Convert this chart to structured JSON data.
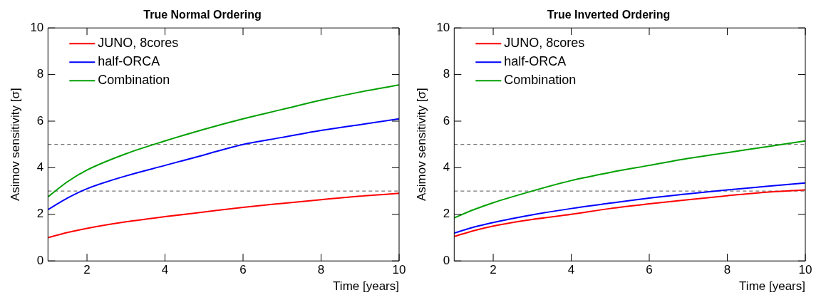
{
  "chart_data": [
    {
      "type": "line",
      "title": "True Normal Ordering",
      "xlabel": "Time [years]",
      "ylabel": "Asimov sensitivity [σ]",
      "xlim": [
        1,
        10
      ],
      "xticks": [
        2,
        4,
        6,
        8,
        10
      ],
      "ylim": [
        0,
        10
      ],
      "yticks": [
        0,
        2,
        4,
        6,
        8,
        10
      ],
      "grid": false,
      "legend": "top left",
      "marker": "none",
      "line_style": "solid",
      "ref_lines": [
        {
          "axis": "y",
          "value": 3,
          "color": "#555555",
          "line_style": "dashed"
        },
        {
          "axis": "y",
          "value": 5,
          "color": "#555555",
          "line_style": "dashed"
        }
      ],
      "series": [
        {
          "name": "JUNO, 8cores",
          "color": "#ff0000",
          "x": [
            1,
            1.5,
            2,
            3,
            4,
            5,
            6,
            7,
            8,
            9,
            10
          ],
          "values": [
            1.0,
            1.22,
            1.4,
            1.68,
            1.9,
            2.1,
            2.3,
            2.47,
            2.63,
            2.78,
            2.9
          ]
        },
        {
          "name": "half-ORCA",
          "color": "#0000ff",
          "x": [
            1,
            1.5,
            2,
            3,
            4,
            5,
            6,
            7,
            8,
            9,
            10
          ],
          "values": [
            2.2,
            2.7,
            3.1,
            3.65,
            4.1,
            4.55,
            5.0,
            5.3,
            5.6,
            5.85,
            6.1
          ]
        },
        {
          "name": "Combination",
          "color": "#00a000",
          "x": [
            1,
            1.5,
            2,
            3,
            4,
            5,
            6,
            7,
            8,
            9,
            10
          ],
          "values": [
            2.75,
            3.4,
            3.9,
            4.6,
            5.15,
            5.65,
            6.1,
            6.5,
            6.9,
            7.25,
            7.55
          ]
        }
      ]
    },
    {
      "type": "line",
      "title": "True Inverted Ordering",
      "xlabel": "Time [years]",
      "ylabel": "Asimov sensitivity [σ]",
      "xlim": [
        1,
        10
      ],
      "xticks": [
        2,
        4,
        6,
        8,
        10
      ],
      "ylim": [
        0,
        10
      ],
      "yticks": [
        0,
        2,
        4,
        6,
        8,
        10
      ],
      "grid": false,
      "legend": "top left",
      "marker": "none",
      "line_style": "solid",
      "ref_lines": [
        {
          "axis": "y",
          "value": 3,
          "color": "#555555",
          "line_style": "dashed"
        },
        {
          "axis": "y",
          "value": 5,
          "color": "#555555",
          "line_style": "dashed"
        }
      ],
      "series": [
        {
          "name": "JUNO, 8cores",
          "color": "#ff0000",
          "x": [
            1,
            1.5,
            2,
            3,
            4,
            5,
            6,
            7,
            8,
            9,
            10
          ],
          "values": [
            1.05,
            1.3,
            1.5,
            1.78,
            2.0,
            2.25,
            2.45,
            2.63,
            2.8,
            2.95,
            3.05
          ]
        },
        {
          "name": "half-ORCA",
          "color": "#0000ff",
          "x": [
            1,
            1.5,
            2,
            3,
            4,
            5,
            6,
            7,
            8,
            9,
            10
          ],
          "values": [
            1.2,
            1.45,
            1.65,
            1.98,
            2.25,
            2.48,
            2.7,
            2.88,
            3.05,
            3.2,
            3.35
          ]
        },
        {
          "name": "Combination",
          "color": "#00a000",
          "x": [
            1,
            1.5,
            2,
            3,
            4,
            5,
            6,
            7,
            8,
            9,
            10
          ],
          "values": [
            1.85,
            2.2,
            2.5,
            3.0,
            3.45,
            3.8,
            4.1,
            4.4,
            4.65,
            4.9,
            5.15
          ]
        }
      ]
    }
  ]
}
